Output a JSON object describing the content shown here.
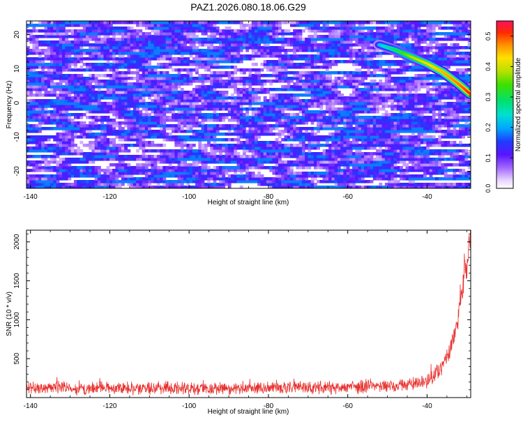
{
  "title": "PAZ1.2026.080.18.06.G29",
  "chart_data": [
    {
      "type": "heatmap",
      "xlabel": "Height of straight line (km)",
      "ylabel": "Frequency (Hz)",
      "xlim": [
        -141,
        -29
      ],
      "ylim": [
        -25,
        24
      ],
      "xticks": [
        -140,
        -120,
        -100,
        -80,
        -60,
        -40
      ],
      "xtick_labels": [
        "-140",
        "-120",
        "-100",
        "-80",
        "-60",
        "-40"
      ],
      "yticks": [
        -20,
        -10,
        0,
        10,
        20
      ],
      "ytick_labels": [
        "-20",
        "-10",
        "0",
        "10",
        "20"
      ],
      "colorbar": {
        "label": "Normalized spectral amplitude",
        "range": [
          0,
          0.55
        ],
        "ticks": [
          0,
          0.1,
          0.2,
          0.3,
          0.4,
          0.5
        ],
        "tick_labels": [
          "0.0",
          "0.1",
          "0.2",
          "0.3",
          "0.4",
          "0.5"
        ]
      },
      "signal_ridge": {
        "x": [
          -52,
          -48,
          -44,
          -40,
          -36,
          -32,
          -29
        ],
        "y": [
          17,
          15.5,
          13.5,
          11.5,
          9,
          5.5,
          2.5
        ],
        "amplitude": [
          0.22,
          0.3,
          0.38,
          0.42,
          0.45,
          0.48,
          0.52
        ]
      },
      "background_amplitude": [
        0.02,
        0.18
      ]
    },
    {
      "type": "line",
      "xlabel": "Height of straight line (km)",
      "ylabel": "SNR (10 * v/v)",
      "xlim": [
        -141,
        -29
      ],
      "ylim": [
        0,
        2150
      ],
      "xticks": [
        -140,
        -120,
        -100,
        -80,
        -60,
        -40
      ],
      "xtick_labels": [
        "-140",
        "-120",
        "-100",
        "-80",
        "-60",
        "-40"
      ],
      "yticks": [
        500,
        1000,
        1500,
        2000
      ],
      "ytick_labels": [
        "500",
        "1000",
        "1500",
        "2000"
      ],
      "series": [
        {
          "name": "SNR",
          "color": "#e8312f",
          "x": [
            -141,
            -130,
            -120,
            -110,
            -100,
            -90,
            -80,
            -70,
            -60,
            -52,
            -48,
            -45,
            -42,
            -40,
            -38,
            -36,
            -35,
            -34,
            -33,
            -32,
            -31,
            -30.5,
            -30,
            -29.5,
            -29
          ],
          "y": [
            120,
            120,
            120,
            120,
            120,
            120,
            125,
            130,
            130,
            140,
            150,
            170,
            190,
            210,
            300,
            420,
            520,
            640,
            820,
            1050,
            1450,
            1750,
            1550,
            1900,
            2100
          ],
          "noise_band": 120
        }
      ]
    }
  ]
}
